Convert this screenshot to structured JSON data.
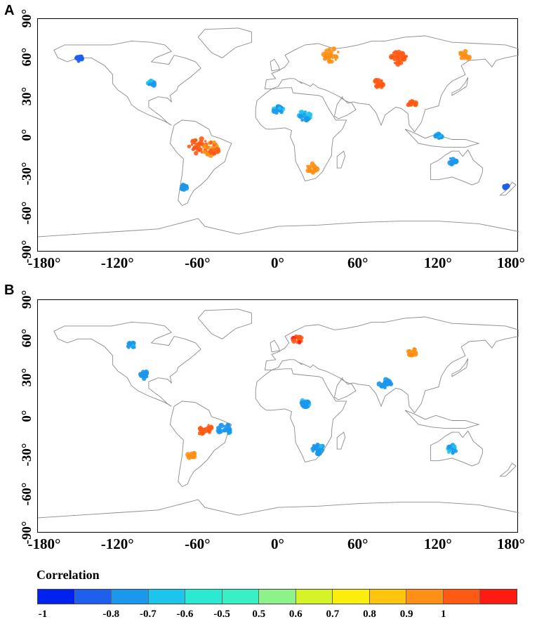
{
  "panels": [
    {
      "letter": "A",
      "y_ticks": [
        "90°",
        "60°",
        "30°",
        "0°",
        "-30°",
        "-60°",
        "-90°"
      ],
      "x_ticks": [
        "-180°",
        "-120°",
        "-60°",
        "0°",
        "60°",
        "120°",
        "180°"
      ],
      "hotspots": [
        {
          "lon": -60,
          "lat": -8,
          "value": 0.8,
          "r": 14
        },
        {
          "lon": -50,
          "lat": -10,
          "value": 0.75,
          "r": 12
        },
        {
          "lon": 40,
          "lat": 62,
          "value": 0.7,
          "r": 12
        },
        {
          "lon": 90,
          "lat": 60,
          "value": 0.8,
          "r": 12
        },
        {
          "lon": 75,
          "lat": 40,
          "value": 0.85,
          "r": 8
        },
        {
          "lon": 140,
          "lat": 62,
          "value": 0.7,
          "r": 8
        },
        {
          "lon": 100,
          "lat": 25,
          "value": 0.8,
          "r": 6
        },
        {
          "lon": -150,
          "lat": 60,
          "value": -0.8,
          "r": 6
        },
        {
          "lon": 20,
          "lat": 15,
          "value": -0.6,
          "r": 9
        },
        {
          "lon": 0,
          "lat": 20,
          "value": -0.6,
          "r": 7
        },
        {
          "lon": -95,
          "lat": 40,
          "value": -0.6,
          "r": 6
        },
        {
          "lon": -70,
          "lat": -40,
          "value": -0.7,
          "r": 5
        },
        {
          "lon": 130,
          "lat": -20,
          "value": -0.7,
          "r": 6
        },
        {
          "lon": 170,
          "lat": -40,
          "value": -0.8,
          "r": 4
        },
        {
          "lon": 25,
          "lat": -25,
          "value": 0.7,
          "r": 8
        },
        {
          "lon": 120,
          "lat": 0,
          "value": -0.6,
          "r": 6
        }
      ]
    },
    {
      "letter": "B",
      "y_ticks": [
        "90°",
        "60°",
        "30°",
        "0°",
        "-30°",
        "-60°",
        "-90°"
      ],
      "x_ticks": [
        "-180°",
        "-120°",
        "-60°",
        "0°",
        "60°",
        "120°",
        "180°"
      ],
      "hotspots": [
        {
          "lon": -40,
          "lat": -10,
          "value": -0.7,
          "r": 10
        },
        {
          "lon": -55,
          "lat": -10,
          "value": 0.8,
          "r": 10
        },
        {
          "lon": 15,
          "lat": 60,
          "value": 0.9,
          "r": 8
        },
        {
          "lon": 80,
          "lat": 25,
          "value": -0.7,
          "r": 9
        },
        {
          "lon": -100,
          "lat": 32,
          "value": -0.7,
          "r": 7
        },
        {
          "lon": 30,
          "lat": -25,
          "value": -0.6,
          "r": 9
        },
        {
          "lon": 130,
          "lat": -25,
          "value": -0.6,
          "r": 7
        },
        {
          "lon": 20,
          "lat": 10,
          "value": -0.6,
          "r": 7
        },
        {
          "lon": -110,
          "lat": 55,
          "value": -0.6,
          "r": 6
        },
        {
          "lon": 100,
          "lat": 50,
          "value": 0.7,
          "r": 7
        },
        {
          "lon": -65,
          "lat": -30,
          "value": 0.7,
          "r": 6
        }
      ]
    }
  ],
  "colorbar": {
    "title": "Correlation",
    "colors": [
      "#0022ee",
      "#1f5fee",
      "#1b97ec",
      "#1dc4ec",
      "#2ce9d2",
      "#38f0c4",
      "#8ef28a",
      "#d6f229",
      "#fcee0c",
      "#ffc50e",
      "#ff8f15",
      "#ff5a14",
      "#ff1a12"
    ],
    "labels": [
      "-1",
      "-0.8",
      "-0.7",
      "-0.6",
      "-0.5",
      "0.5",
      "0.6",
      "0.7",
      "0.8",
      "0.9",
      "1"
    ]
  }
}
